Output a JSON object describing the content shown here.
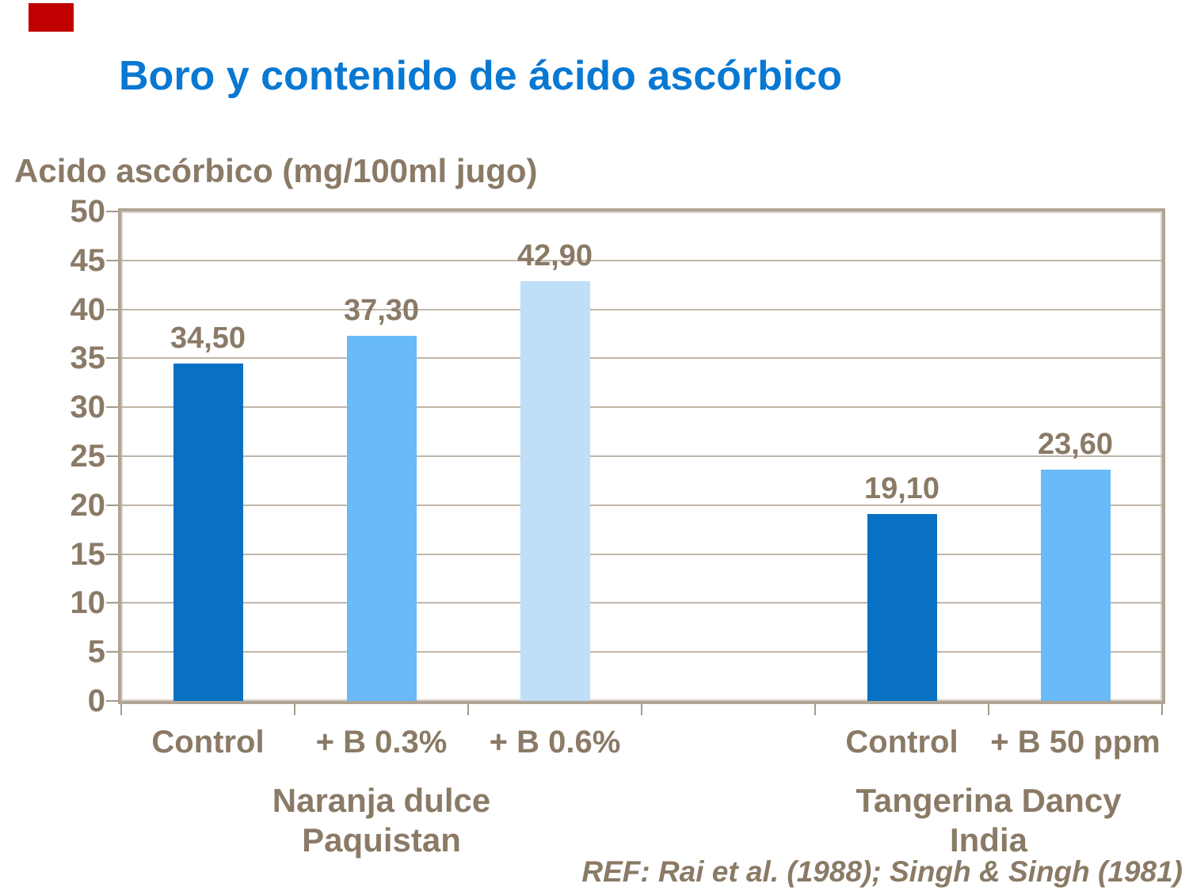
{
  "slide": {
    "title": "Boro y contenido de ácido ascórbico",
    "title_color": "#0878D2",
    "accent_bar_color": "#C00000",
    "text_color": "#8A7A66",
    "reference": "REF: Rai et al. (1988); Singh & Singh (1981)"
  },
  "chart_data": {
    "type": "bar",
    "title": "Boro y contenido de ácido ascórbico",
    "xlabel": "",
    "ylabel": "Acido ascórbico (mg/100ml jugo)",
    "ylim": [
      0,
      50
    ],
    "ytick_step": 5,
    "ytick_values": [
      0,
      5,
      10,
      15,
      20,
      25,
      30,
      35,
      40,
      45,
      50
    ],
    "grid": true,
    "legend": "none",
    "categories": [
      "Control",
      "+ B 0.3%",
      "+ B 0.6%",
      "",
      "Control",
      "+ B 50 ppm"
    ],
    "values": [
      34.5,
      37.3,
      42.9,
      null,
      19.1,
      23.6
    ],
    "value_labels": [
      "34,50",
      "37,30",
      "42,90",
      "",
      "19,10",
      "23,60"
    ],
    "bar_colors": [
      "#0971C3",
      "#68BAF8",
      "#BFDEF8",
      null,
      "#0971C3",
      "#68BAF8"
    ],
    "groups": [
      {
        "label_lines": [
          "Naranja dulce",
          "Paquistan"
        ],
        "start_slot": 0,
        "end_slot": 2
      },
      {
        "label_lines": [
          "Tangerina Dancy",
          "India"
        ],
        "start_slot": 4,
        "end_slot": 5
      }
    ],
    "colors": {
      "gridline": "#C0B6A9",
      "frame": "#B0A494",
      "frame_highlight": "#DAD3C8",
      "tick": "#A69A89",
      "label_text": "#8A7A66"
    }
  }
}
